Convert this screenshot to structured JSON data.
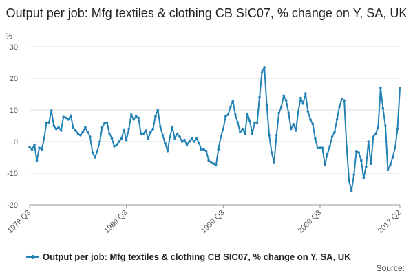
{
  "title": "Output per job: Mfg textiles & clothing CB SIC07, % change on Y, SA, UK",
  "source_label": "Source:",
  "colors": {
    "series": "#2281b5",
    "grid": "#dddddd",
    "axis": "#999999"
  },
  "chart_data": {
    "type": "line",
    "title": "Output per job: Mfg textiles & clothing CB SIC07, % change on Y, SA, UK",
    "ylabel": "%",
    "ylim": [
      -20,
      30
    ],
    "yticks": [
      -20,
      -10,
      0,
      10,
      20,
      30
    ],
    "xticks": [
      "1979 Q3",
      "1989 Q3",
      "1999 Q3",
      "2009 Q3",
      "2017 Q2"
    ],
    "grid": "horizontal",
    "legend_position": "bottom",
    "series": [
      {
        "name": "Output per job: Mfg textiles & clothing CB SIC07, % change on Y, SA, UK",
        "x_start": "1979 Q3",
        "x_end": "2017 Q2",
        "values": [
          -1.8,
          -2.5,
          -1.0,
          -6.0,
          -2.0,
          -2.5,
          1.0,
          6.0,
          6.0,
          9.8,
          5.0,
          4.0,
          4.5,
          3.5,
          7.8,
          7.5,
          7.0,
          8.2,
          4.5,
          3.5,
          2.5,
          2.0,
          3.0,
          4.5,
          3.0,
          1.5,
          -3.5,
          -5.0,
          -3.0,
          0.0,
          4.5,
          5.8,
          6.0,
          2.5,
          1.0,
          -1.5,
          -1.0,
          0.0,
          1.0,
          3.8,
          0.5,
          4.0,
          8.5,
          7.0,
          8.0,
          7.5,
          2.5,
          2.5,
          3.5,
          1.0,
          3.0,
          4.0,
          8.0,
          10.0,
          4.8,
          2.0,
          -0.5,
          -3.0,
          1.5,
          4.5,
          1.0,
          2.5,
          1.5,
          0.0,
          0.5,
          -1.0,
          0.0,
          1.0,
          0.0,
          1.0,
          -0.5,
          -2.5,
          -2.5,
          -3.0,
          -6.0,
          -6.5,
          -7.0,
          -7.5,
          -2.5,
          1.5,
          4.0,
          8.0,
          8.5,
          11.0,
          12.8,
          8.5,
          6.0,
          3.0,
          4.0,
          2.5,
          8.8,
          6.5,
          2.5,
          6.0,
          6.0,
          14.0,
          22.0,
          23.5,
          11.5,
          2.0,
          -3.5,
          -6.5,
          2.0,
          9.0,
          11.0,
          14.5,
          13.0,
          9.0,
          4.0,
          5.5,
          3.5,
          9.5,
          13.8,
          12.0,
          15.2,
          9.5,
          7.0,
          5.5,
          1.0,
          -2.0,
          -2.0,
          -2.0,
          -7.5,
          -4.0,
          -1.5,
          1.5,
          3.0,
          7.0,
          11.0,
          13.5,
          13.0,
          -2.0,
          -12.5,
          -15.5,
          -10.5,
          -3.0,
          -3.5,
          -6.0,
          -11.5,
          -8.0,
          0.0,
          -7.0,
          1.5,
          2.5,
          4.5,
          17.0,
          10.5,
          5.0,
          -9.0,
          -7.5,
          -5.0,
          -2.0,
          4.0,
          17.0
        ]
      }
    ]
  }
}
